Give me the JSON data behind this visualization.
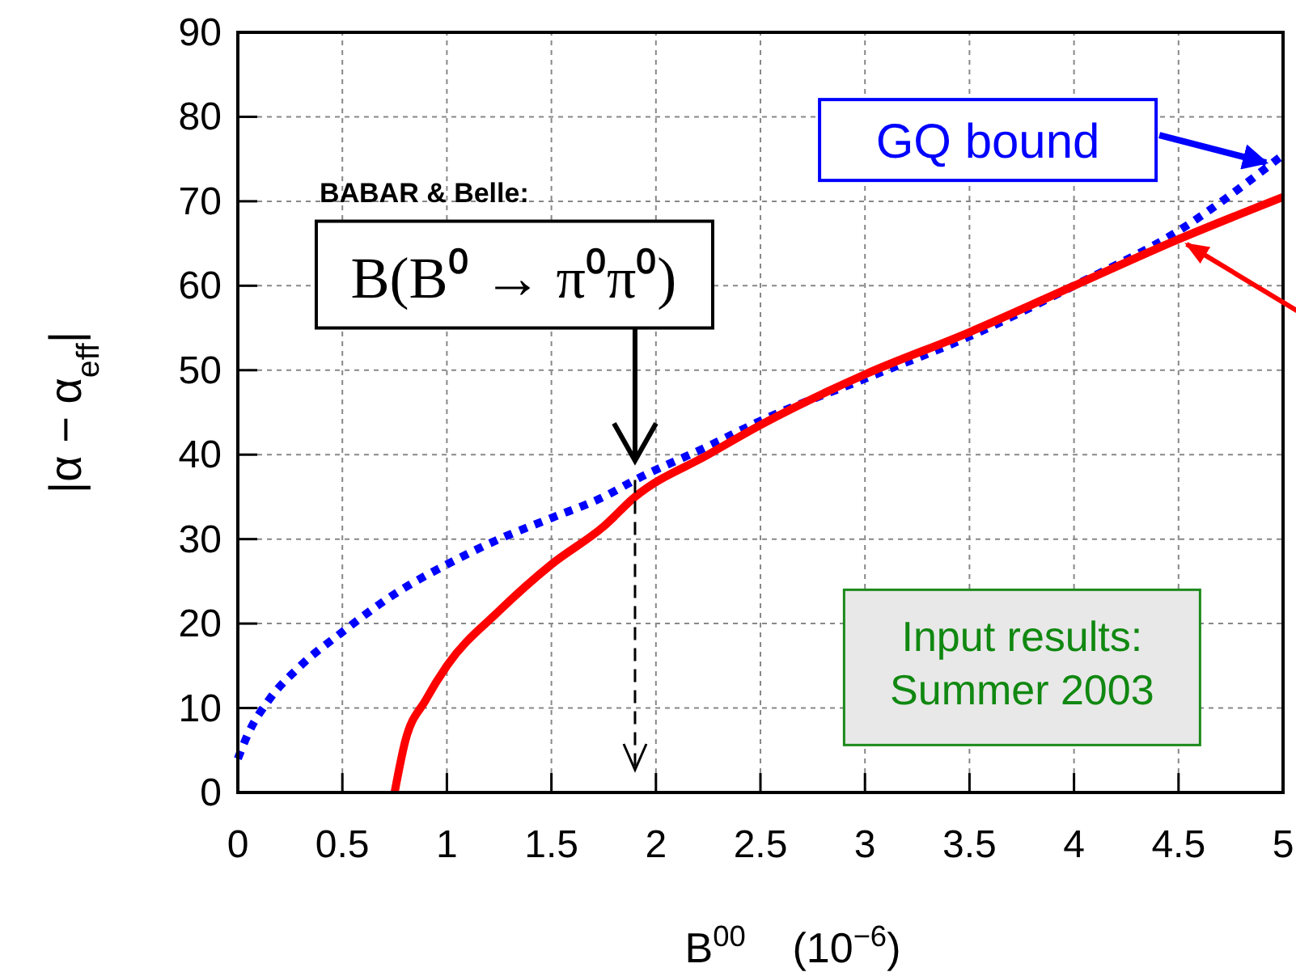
{
  "chart_data": {
    "type": "line",
    "xlabel": "B$^{00}$    (10$^{−6}$)",
    "ylabel": "|α − α$_{eff}$|",
    "xlim": [
      0,
      5
    ],
    "xticks": [
      0,
      0.5,
      1,
      1.5,
      2,
      2.5,
      3,
      3.5,
      4,
      4.5,
      5
    ],
    "ylim": [
      0,
      90
    ],
    "yticks": [
      0,
      10,
      20,
      30,
      40,
      50,
      60,
      70,
      80,
      90
    ],
    "grid": true,
    "series": [
      {
        "color": "#0000ff",
        "line_style": "dotted",
        "x": [
          0,
          0.05,
          0.15,
          0.3,
          0.5,
          0.75,
          1,
          1.25,
          1.5,
          1.75,
          1.9,
          2.25,
          2.5,
          3,
          3.5,
          4,
          4.5,
          5
        ],
        "values": [
          4,
          7,
          11,
          15,
          19,
          23.5,
          27,
          30,
          32.5,
          35,
          37,
          41,
          44,
          49,
          54,
          60,
          66.5,
          75.5
        ]
      },
      {
        "color": "#ff0000",
        "line_style": "solid",
        "x": [
          0.75,
          0.8,
          0.9,
          1,
          1.25,
          1.5,
          1.75,
          1.9,
          2.25,
          2.5,
          3,
          3.5,
          4,
          4.5,
          5
        ],
        "values": [
          0,
          6,
          11,
          15,
          21.5,
          27,
          31.5,
          35,
          40,
          43.5,
          49.5,
          54.5,
          60,
          65.5,
          70.5
        ]
      }
    ],
    "annotations": [
      {
        "text": "GQ bound",
        "x": 4.95,
        "y": 74
      },
      {
        "text": "B(B⁰ → π⁰π⁰)",
        "x": 1.9,
        "y": 37
      },
      "BABAR & Belle:",
      "Input results:\nSummer 2003"
    ]
  }
}
